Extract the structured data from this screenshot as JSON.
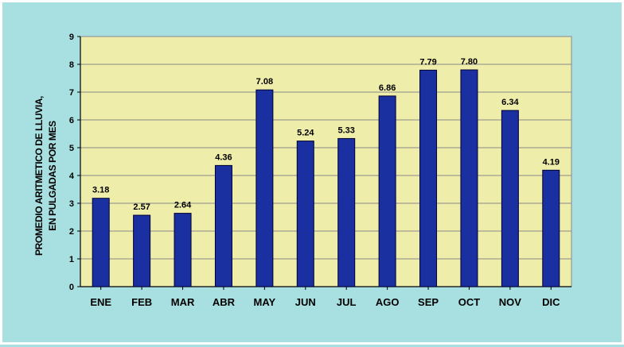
{
  "chart_data": {
    "type": "bar",
    "categories": [
      "ENE",
      "FEB",
      "MAR",
      "ABR",
      "MAY",
      "JUN",
      "JUL",
      "AGO",
      "SEP",
      "OCT",
      "NOV",
      "DIC"
    ],
    "values": [
      3.18,
      2.57,
      2.64,
      4.36,
      7.08,
      5.24,
      5.33,
      6.86,
      7.79,
      7.8,
      6.34,
      4.19
    ],
    "value_labels": [
      "3.18",
      "2.57",
      "2.64",
      "4.36",
      "7.08",
      "5.24",
      "5.33",
      "6.86",
      "7.79",
      "7.80",
      "6.34",
      "4.19"
    ],
    "title": "",
    "xlabel": "",
    "ylabel_lines": [
      "PROMEDIO ARITMETICO DE LLUVIA,",
      "EN PULGADAS POR MES"
    ],
    "ylim": [
      0,
      9
    ],
    "yticks": [
      "0",
      "1",
      "2",
      "3",
      "4",
      "5",
      "6",
      "7",
      "8",
      "9"
    ],
    "grid": true,
    "legend": "none",
    "colors": {
      "bar": "#1a2fa0",
      "bar_edge": "#000033",
      "plot_bg": "#efedaa",
      "page_bg": "#a8dfe0",
      "grid": "#8a8a8a"
    }
  }
}
